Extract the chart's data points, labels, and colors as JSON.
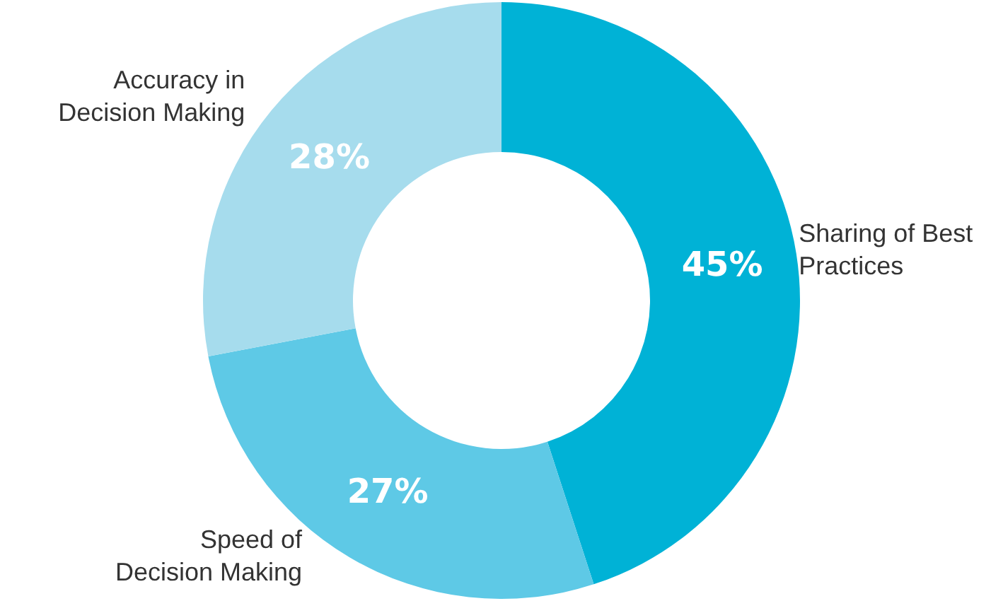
{
  "chart_data": {
    "type": "donut",
    "categories": [
      "Sharing of Best Practices",
      "Speed of Decision Making",
      "Accuracy in Decision Making"
    ],
    "values": [
      45,
      27,
      28
    ],
    "value_labels": [
      "45%",
      "27%",
      "28%"
    ],
    "colors": [
      "#00b2d6",
      "#5ec9e6",
      "#a6dced"
    ]
  }
}
